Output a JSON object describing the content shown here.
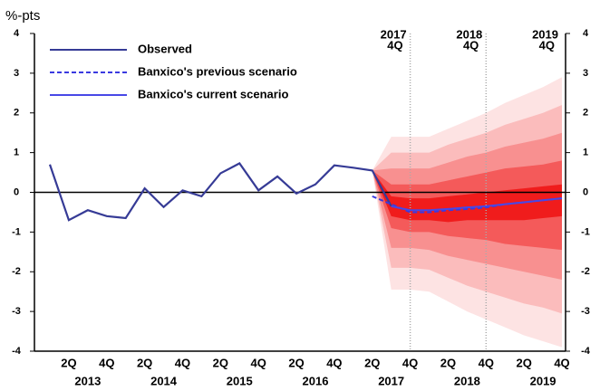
{
  "chart_data": {
    "type": "fan",
    "y_label": "%-pts",
    "categories": [
      null,
      "2Q",
      null,
      "4Q",
      null,
      "2Q",
      null,
      "4Q",
      null,
      "2Q",
      null,
      "4Q",
      null,
      "2Q",
      null,
      "4Q",
      null,
      "2Q",
      null,
      "4Q",
      null,
      "2Q",
      null,
      "4Q",
      null,
      "2Q",
      null,
      "4Q"
    ],
    "years": [
      "2013",
      "2014",
      "2015",
      "2016",
      "2017",
      "2018",
      "2019"
    ],
    "ylim": [
      -4,
      4
    ],
    "yticks": [
      -4,
      -3,
      -2,
      -1,
      0,
      1,
      2,
      3,
      4
    ],
    "annotations": [
      {
        "year": "2017",
        "quarter": "4Q"
      },
      {
        "year": "2018",
        "quarter": "4Q"
      },
      {
        "year": "2019",
        "quarter": "4Q"
      }
    ],
    "series": [
      {
        "name": "Observed",
        "color": "#363b96",
        "style": "solid",
        "values": [
          0.7,
          -0.7,
          -0.45,
          -0.6,
          -0.65,
          0.1,
          -0.37,
          0.05,
          -0.1,
          0.48,
          0.73,
          0.05,
          0.4,
          -0.03,
          0.2,
          0.68,
          0.62,
          0.55,
          -0.35,
          null,
          null,
          null,
          null,
          null,
          null,
          null,
          null,
          null
        ]
      },
      {
        "name": "Banxico's previous scenario",
        "color": "#3a3ae0",
        "style": "dashed",
        "values": [
          null,
          null,
          null,
          null,
          null,
          null,
          null,
          null,
          null,
          null,
          null,
          null,
          null,
          null,
          null,
          null,
          null,
          -0.1,
          -0.3,
          -0.5,
          -0.5,
          -0.45,
          -0.42,
          -0.38,
          -0.3,
          -0.25,
          -0.2,
          -0.15
        ]
      },
      {
        "name": "Banxico's current scenario",
        "color": "#4848e6",
        "style": "solid",
        "values": [
          null,
          null,
          null,
          null,
          null,
          null,
          null,
          null,
          null,
          null,
          null,
          null,
          null,
          null,
          null,
          null,
          null,
          null,
          -0.35,
          -0.45,
          -0.45,
          -0.42,
          -0.38,
          -0.35,
          -0.3,
          -0.25,
          -0.2,
          -0.15
        ]
      }
    ],
    "fan": [
      {
        "color": "#fde3e3",
        "upper": [
          null,
          null,
          null,
          null,
          null,
          null,
          null,
          null,
          null,
          null,
          null,
          null,
          null,
          null,
          null,
          null,
          null,
          0.55,
          1.4,
          1.4,
          1.4,
          1.6,
          1.8,
          2.0,
          2.25,
          2.45,
          2.65,
          2.9
        ],
        "lower": [
          null,
          null,
          null,
          null,
          null,
          null,
          null,
          null,
          null,
          null,
          null,
          null,
          null,
          null,
          null,
          null,
          null,
          0.55,
          -2.45,
          -2.45,
          -2.5,
          -2.75,
          -3.0,
          -3.2,
          -3.4,
          -3.6,
          -3.75,
          -3.9
        ]
      },
      {
        "color": "#fbbcbc",
        "upper": [
          null,
          null,
          null,
          null,
          null,
          null,
          null,
          null,
          null,
          null,
          null,
          null,
          null,
          null,
          null,
          null,
          null,
          0.55,
          1.0,
          1.0,
          1.0,
          1.2,
          1.35,
          1.5,
          1.7,
          1.85,
          2.0,
          2.2
        ],
        "lower": [
          null,
          null,
          null,
          null,
          null,
          null,
          null,
          null,
          null,
          null,
          null,
          null,
          null,
          null,
          null,
          null,
          null,
          0.55,
          -1.9,
          -1.9,
          -1.95,
          -2.15,
          -2.35,
          -2.5,
          -2.65,
          -2.8,
          -2.9,
          -3.05
        ]
      },
      {
        "color": "#f89090",
        "upper": [
          null,
          null,
          null,
          null,
          null,
          null,
          null,
          null,
          null,
          null,
          null,
          null,
          null,
          null,
          null,
          null,
          null,
          0.55,
          0.6,
          0.6,
          0.6,
          0.75,
          0.9,
          1.0,
          1.15,
          1.25,
          1.35,
          1.5
        ],
        "lower": [
          null,
          null,
          null,
          null,
          null,
          null,
          null,
          null,
          null,
          null,
          null,
          null,
          null,
          null,
          null,
          null,
          null,
          0.55,
          -1.4,
          -1.4,
          -1.45,
          -1.6,
          -1.7,
          -1.8,
          -1.9,
          -2.0,
          -2.1,
          -2.2
        ]
      },
      {
        "color": "#f45a5a",
        "upper": [
          null,
          null,
          null,
          null,
          null,
          null,
          null,
          null,
          null,
          null,
          null,
          null,
          null,
          null,
          null,
          null,
          null,
          0.55,
          0.2,
          0.2,
          0.2,
          0.3,
          0.4,
          0.5,
          0.6,
          0.65,
          0.7,
          0.8
        ],
        "lower": [
          null,
          null,
          null,
          null,
          null,
          null,
          null,
          null,
          null,
          null,
          null,
          null,
          null,
          null,
          null,
          null,
          null,
          0.55,
          -0.9,
          -1.0,
          -1.0,
          -1.1,
          -1.15,
          -1.2,
          -1.3,
          -1.35,
          -1.4,
          -1.45
        ]
      },
      {
        "color": "#f01c1c",
        "upper": [
          null,
          null,
          null,
          null,
          null,
          null,
          null,
          null,
          null,
          null,
          null,
          null,
          null,
          null,
          null,
          null,
          null,
          0.55,
          -0.1,
          -0.15,
          -0.15,
          -0.1,
          -0.05,
          0,
          0.05,
          0.1,
          0.15,
          0.2
        ],
        "lower": [
          null,
          null,
          null,
          null,
          null,
          null,
          null,
          null,
          null,
          null,
          null,
          null,
          null,
          null,
          null,
          null,
          null,
          0.55,
          -0.6,
          -0.7,
          -0.7,
          -0.75,
          -0.7,
          -0.7,
          -0.7,
          -0.7,
          -0.65,
          -0.6
        ]
      }
    ],
    "legend": "upper left"
  }
}
